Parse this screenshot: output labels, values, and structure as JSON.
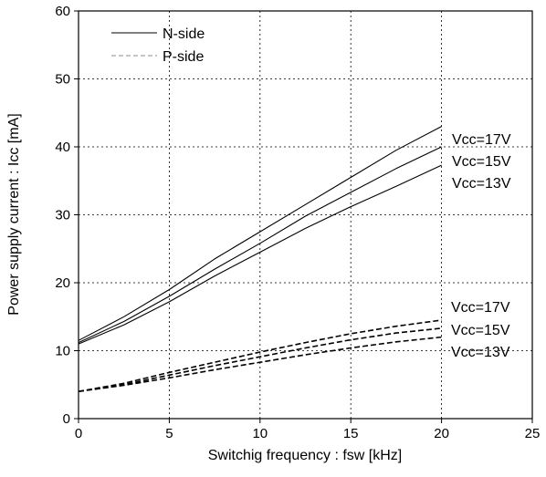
{
  "chart_data": {
    "type": "line",
    "title": "",
    "xlabel": "Switchig frequency : fsw [kHz]",
    "ylabel": "Power supply current : Icc [mA]",
    "xlim": [
      0,
      25
    ],
    "ylim": [
      0,
      60
    ],
    "xticks": [
      0,
      5,
      10,
      15,
      20,
      25
    ],
    "yticks": [
      0,
      10,
      20,
      30,
      40,
      50,
      60
    ],
    "xtick_labels": [
      "0",
      "5",
      "10",
      "15",
      "20",
      "25"
    ],
    "ytick_labels": [
      "0",
      "10",
      "20",
      "30",
      "40",
      "50",
      "60"
    ],
    "grid": "dotted",
    "legend": {
      "position": "top-left",
      "entries": [
        {
          "label": "N-side",
          "style": "solid"
        },
        {
          "label": "P-side",
          "style": "dashed"
        }
      ]
    },
    "x": [
      0,
      2.5,
      5,
      7.5,
      10,
      12.5,
      15,
      17.5,
      20
    ],
    "series": [
      {
        "group": "N-side",
        "values": [
          11.5,
          15.0,
          19.0,
          23.5,
          27.5,
          31.5,
          35.5,
          39.5,
          43.0
        ]
      },
      {
        "group": "N-side",
        "values": [
          11.2,
          14.3,
          18.0,
          22.0,
          25.8,
          29.8,
          33.3,
          36.8,
          40.0
        ]
      },
      {
        "group": "N-side",
        "values": [
          11.0,
          13.8,
          17.2,
          21.0,
          24.5,
          28.0,
          31.2,
          34.2,
          37.3
        ]
      },
      {
        "group": "P-side",
        "values": [
          4.0,
          5.2,
          6.8,
          8.3,
          9.8,
          11.2,
          12.5,
          13.6,
          14.5
        ]
      },
      {
        "group": "P-side",
        "values": [
          4.0,
          5.0,
          6.4,
          7.8,
          9.1,
          10.4,
          11.6,
          12.6,
          13.3
        ]
      },
      {
        "group": "P-side",
        "values": [
          4.0,
          4.9,
          6.0,
          7.2,
          8.3,
          9.4,
          10.4,
          11.3,
          12.0
        ]
      }
    ],
    "annotations_nside": [
      "Vcc=17V",
      "Vcc=15V",
      "Vcc=13V"
    ],
    "annotations_pside": [
      "Vcc=17V",
      "Vcc=15V",
      "Vcc=13V"
    ]
  }
}
